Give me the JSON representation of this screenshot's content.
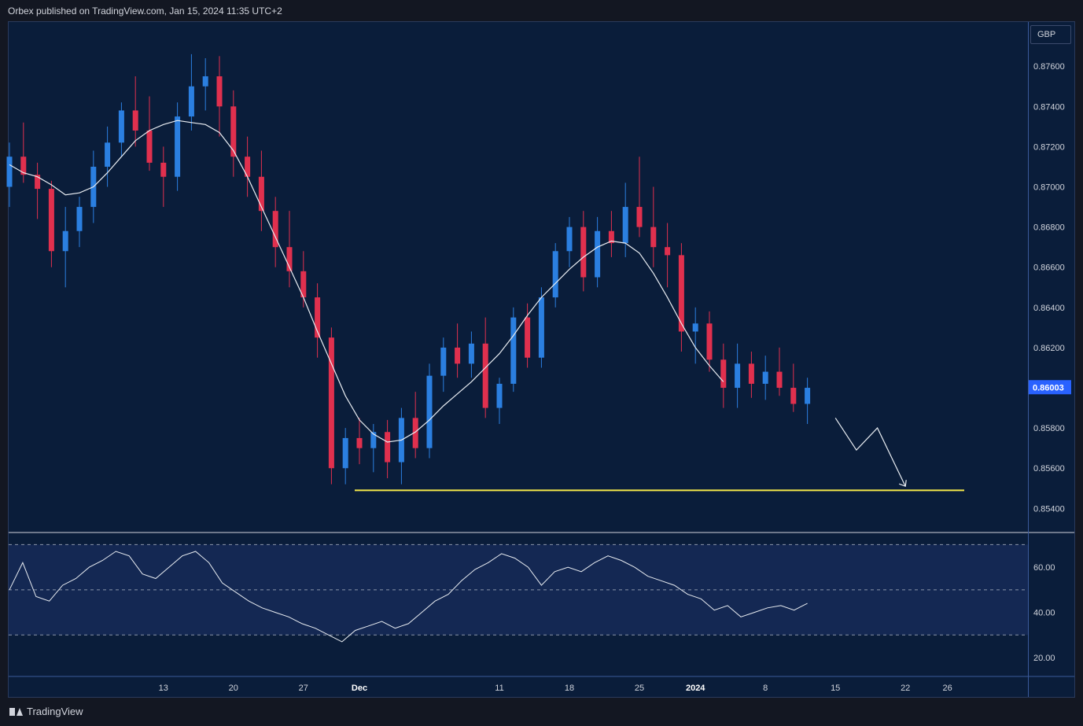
{
  "header": {
    "text": "Orbex published on TradingView.com, Jan 15, 2024 11:35 UTC+2"
  },
  "toolbar": {
    "currency_label": "GBP"
  },
  "footer": {
    "brand": "TradingView"
  },
  "colors": {
    "background": "#0a1d3a",
    "bull": "#2b7fe0",
    "bear": "#e0304e",
    "support": "#f5e94a",
    "ma": "#e9edf2"
  },
  "chart_data": {
    "type": "candlestick",
    "price_axis": {
      "ticks": [
        "0.87600",
        "0.87400",
        "0.87200",
        "0.87000",
        "0.86800",
        "0.86600",
        "0.86400",
        "0.86200",
        "0.86000",
        "0.85800",
        "0.85600",
        "0.85400"
      ],
      "current_price": "0.86003",
      "ylim": [
        0.8528,
        0.8782
      ]
    },
    "time_axis": {
      "labels": [
        {
          "text": "13",
          "i": 11
        },
        {
          "text": "20",
          "i": 16
        },
        {
          "text": "27",
          "i": 21
        },
        {
          "text": "Dec",
          "i": 25
        },
        {
          "text": "11",
          "i": 35
        },
        {
          "text": "18",
          "i": 40
        },
        {
          "text": "25",
          "i": 45
        },
        {
          "text": "2024",
          "i": 49
        },
        {
          "text": "8",
          "i": 54
        },
        {
          "text": "15",
          "i": 59
        },
        {
          "text": "22",
          "i": 64
        },
        {
          "text": "26",
          "i": 67
        }
      ]
    },
    "candles": [
      [
        0.87,
        0.8722,
        0.869,
        0.8715
      ],
      [
        0.8715,
        0.8732,
        0.8702,
        0.8706
      ],
      [
        0.8706,
        0.8712,
        0.8684,
        0.8699
      ],
      [
        0.8699,
        0.8703,
        0.866,
        0.8668
      ],
      [
        0.8668,
        0.869,
        0.865,
        0.8678
      ],
      [
        0.8678,
        0.8695,
        0.867,
        0.869
      ],
      [
        0.869,
        0.8718,
        0.8682,
        0.871
      ],
      [
        0.871,
        0.873,
        0.87,
        0.8722
      ],
      [
        0.8722,
        0.8742,
        0.8715,
        0.8738
      ],
      [
        0.8738,
        0.8755,
        0.872,
        0.8728
      ],
      [
        0.8728,
        0.8745,
        0.8708,
        0.8712
      ],
      [
        0.8712,
        0.872,
        0.869,
        0.8705
      ],
      [
        0.8705,
        0.8742,
        0.8698,
        0.8735
      ],
      [
        0.8735,
        0.8766,
        0.8728,
        0.875
      ],
      [
        0.875,
        0.8764,
        0.8738,
        0.8755
      ],
      [
        0.8755,
        0.8765,
        0.8725,
        0.874
      ],
      [
        0.874,
        0.8748,
        0.8705,
        0.8715
      ],
      [
        0.8715,
        0.8725,
        0.8695,
        0.8705
      ],
      [
        0.8705,
        0.8718,
        0.8678,
        0.8688
      ],
      [
        0.8688,
        0.8695,
        0.866,
        0.867
      ],
      [
        0.867,
        0.8688,
        0.865,
        0.8658
      ],
      [
        0.8658,
        0.8668,
        0.864,
        0.8645
      ],
      [
        0.8645,
        0.8652,
        0.8615,
        0.8625
      ],
      [
        0.8625,
        0.863,
        0.8552,
        0.856
      ],
      [
        0.856,
        0.858,
        0.8552,
        0.8575
      ],
      [
        0.8575,
        0.8585,
        0.8562,
        0.857
      ],
      [
        0.857,
        0.8582,
        0.8558,
        0.8578
      ],
      [
        0.8578,
        0.8584,
        0.8555,
        0.8563
      ],
      [
        0.8563,
        0.859,
        0.8552,
        0.8585
      ],
      [
        0.8585,
        0.8598,
        0.8565,
        0.857
      ],
      [
        0.857,
        0.8612,
        0.8565,
        0.8606
      ],
      [
        0.8606,
        0.8625,
        0.8598,
        0.862
      ],
      [
        0.862,
        0.8632,
        0.8605,
        0.8612
      ],
      [
        0.8612,
        0.8628,
        0.8605,
        0.8622
      ],
      [
        0.8622,
        0.8635,
        0.8585,
        0.859
      ],
      [
        0.859,
        0.8605,
        0.8582,
        0.8602
      ],
      [
        0.8602,
        0.864,
        0.8598,
        0.8635
      ],
      [
        0.8635,
        0.8642,
        0.861,
        0.8615
      ],
      [
        0.8615,
        0.865,
        0.861,
        0.8645
      ],
      [
        0.8645,
        0.8672,
        0.864,
        0.8668
      ],
      [
        0.8668,
        0.8685,
        0.866,
        0.868
      ],
      [
        0.868,
        0.8688,
        0.8648,
        0.8655
      ],
      [
        0.8655,
        0.8685,
        0.865,
        0.8678
      ],
      [
        0.8678,
        0.8688,
        0.8665,
        0.8672
      ],
      [
        0.8672,
        0.8702,
        0.8665,
        0.869
      ],
      [
        0.869,
        0.8715,
        0.8675,
        0.868
      ],
      [
        0.868,
        0.87,
        0.866,
        0.867
      ],
      [
        0.867,
        0.8682,
        0.865,
        0.8666
      ],
      [
        0.8666,
        0.8672,
        0.8618,
        0.8628
      ],
      [
        0.8628,
        0.864,
        0.8612,
        0.8632
      ],
      [
        0.8632,
        0.8638,
        0.8608,
        0.8614
      ],
      [
        0.8614,
        0.8622,
        0.859,
        0.86
      ],
      [
        0.86,
        0.8622,
        0.859,
        0.8612
      ],
      [
        0.8612,
        0.8618,
        0.8595,
        0.8602
      ],
      [
        0.8602,
        0.8616,
        0.8594,
        0.8608
      ],
      [
        0.8608,
        0.862,
        0.8596,
        0.86
      ],
      [
        0.86,
        0.8612,
        0.8588,
        0.8592
      ],
      [
        0.8592,
        0.8605,
        0.8582,
        0.86
      ]
    ],
    "moving_average": [
      0.8711,
      0.8707,
      0.8705,
      0.8701,
      0.8696,
      0.8697,
      0.87,
      0.8707,
      0.8715,
      0.8723,
      0.8728,
      0.8731,
      0.8733,
      0.8732,
      0.8731,
      0.8727,
      0.8718,
      0.8705,
      0.869,
      0.8675,
      0.866,
      0.8645,
      0.8628,
      0.8612,
      0.8596,
      0.8584,
      0.8577,
      0.8573,
      0.8574,
      0.8578,
      0.8584,
      0.8591,
      0.8597,
      0.8603,
      0.861,
      0.8617,
      0.8626,
      0.8636,
      0.8645,
      0.8652,
      0.8659,
      0.8665,
      0.867,
      0.8673,
      0.8672,
      0.8667,
      0.8657,
      0.8645,
      0.8632,
      0.862,
      0.8611,
      0.8603
    ],
    "support_level": 0.8549,
    "projection": [
      [
        0.8585,
        59.0
      ],
      [
        0.8569,
        60.5
      ],
      [
        0.858,
        62.0
      ],
      [
        0.8551,
        64.0
      ]
    ],
    "rsi": {
      "ticks": [
        "60.00",
        "40.00",
        "20.00"
      ],
      "upper": 70,
      "mid": 50,
      "lower": 30,
      "ylim": [
        12,
        75
      ],
      "values": [
        50,
        62,
        47,
        45,
        52,
        55,
        60,
        63,
        67,
        65,
        57,
        55,
        60,
        65,
        67,
        62,
        53,
        49,
        45,
        42,
        40,
        38,
        35,
        33,
        30,
        27,
        32,
        34,
        36,
        33,
        35,
        40,
        45,
        48,
        54,
        59,
        62,
        66,
        64,
        60,
        52,
        58,
        60,
        58,
        62,
        65,
        63,
        60,
        56,
        54,
        52,
        48,
        46,
        41,
        43,
        38,
        40,
        42,
        43,
        41,
        44
      ]
    }
  }
}
